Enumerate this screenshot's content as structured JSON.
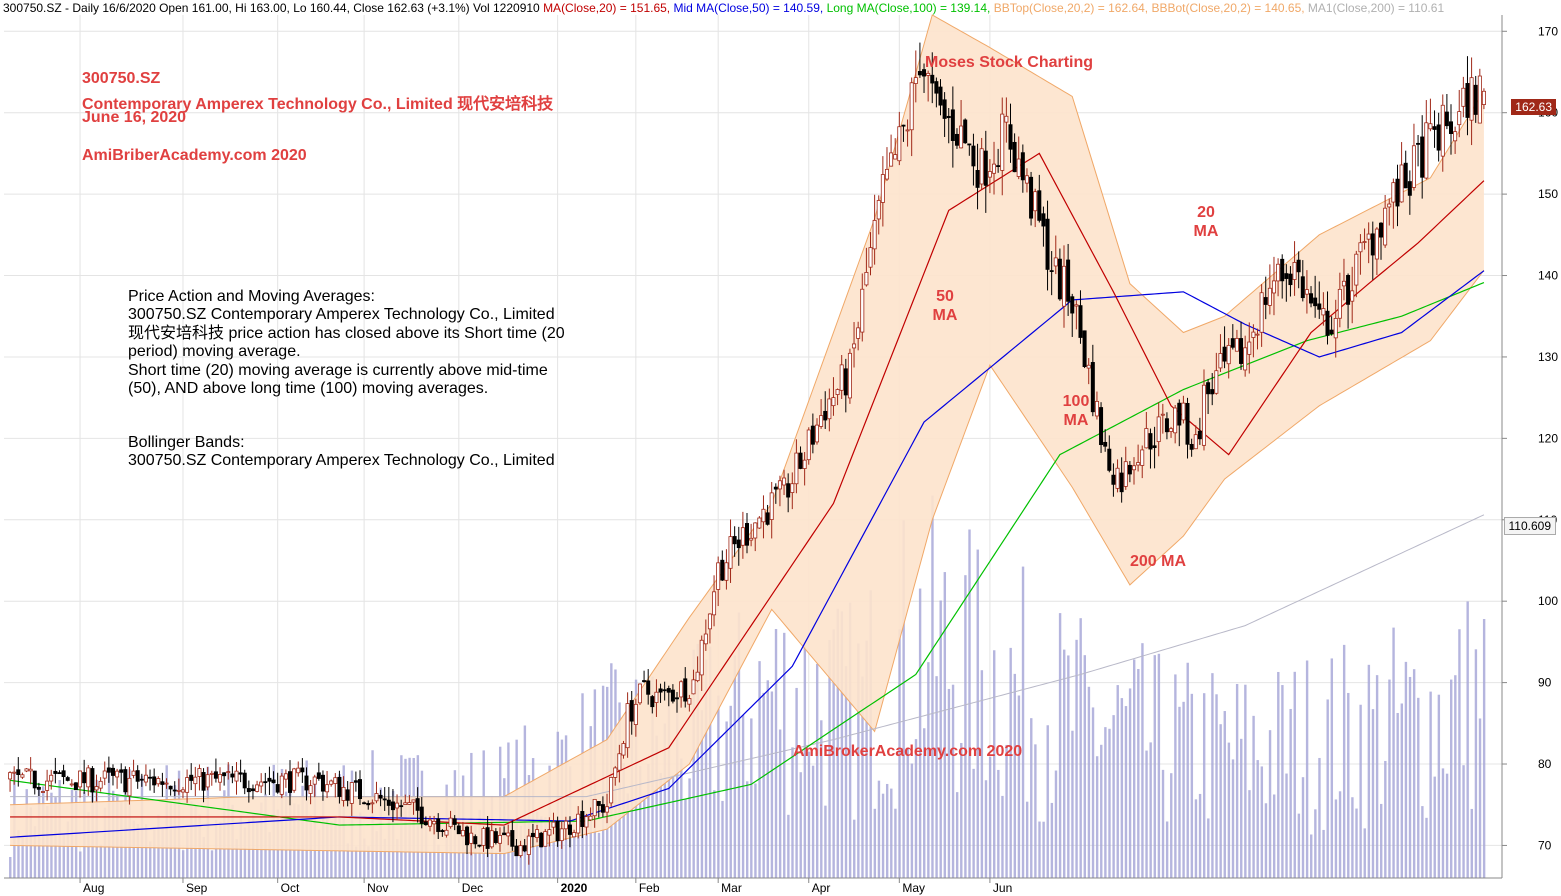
{
  "header": {
    "ticker_info": "300750.SZ - Daily 16/6/2020 Open 161.00, Hi 163.00, Lo 160.44, Close 162.63 (+3.1%) Vol 1220910",
    "ma20": "MA(Close,20) = 151.65,",
    "mid_ma": "Mid MA(Close,50) = 140.59,",
    "long_ma": "Long MA(Close,100) = 139.14,",
    "bbtop": "BBTop(Close,20,2) = 162.64,",
    "bbbot": "BBBot(Close,20,2) = 140.65,",
    "ma1": "MA1(Close,200) = 110.61"
  },
  "title_block": {
    "symbol": "300750.SZ",
    "company": "Contemporary Amperex Technology Co., Limited 现代安培科技",
    "date": "June 16, 2020",
    "site": "AmiBriberAcademy.com  2020"
  },
  "watermark_top": "Moses Stock Charting",
  "watermark_bottom": "AmiBrokerAcademy.com  2020",
  "notes": {
    "line1": "Price Action and Moving Averages:",
    "line2": "300750.SZ Contemporary Amperex Technology Co., Limited",
    "line3": "现代安培科技 price action has closed above its Short time (20",
    "line4": "period) moving average.",
    "line5": "Short time (20) moving average is currently above mid-time",
    "line6": "(50), AND above long time (100) moving averages.",
    "line7": "Bollinger Bands:",
    "line8": "300750.SZ Contemporary Amperex Technology Co., Limited"
  },
  "labels": {
    "ma50_a": "50",
    "ma50_b": "MA",
    "ma100_a": "100",
    "ma100_b": "MA",
    "ma20_a": "20",
    "ma20_b": "MA",
    "ma200": "200 MA"
  },
  "price_tags": {
    "close": "162.63",
    "ma200": "110.609"
  },
  "colors": {
    "ma20": "#c00000",
    "ma50": "#0000e0",
    "ma100": "#00c000",
    "bb": "#f0a868",
    "bb_fill": "#fde3cc",
    "ma200": "#b8b8c8",
    "volume": "#a8a8d8",
    "up": "#ffffff",
    "down": "#000000",
    "label": "#e04040"
  },
  "chart_data": {
    "type": "candlestick",
    "y_ticks": [
      70,
      80,
      90,
      100,
      110,
      120,
      130,
      140,
      150,
      160,
      170
    ],
    "ylim": [
      66,
      172
    ],
    "x_tick_labels": [
      "Aug",
      "Sep",
      "Oct",
      "Nov",
      "Dec",
      "2020",
      "Feb",
      "Mar",
      "Apr",
      "May",
      "Jun"
    ],
    "anchors": [
      [
        74,
        78
      ],
      [
        88,
        76
      ],
      [
        100,
        74
      ],
      [
        112,
        71
      ],
      [
        124,
        70
      ],
      [
        134,
        72
      ],
      [
        140,
        74
      ],
      [
        145,
        75
      ],
      [
        150,
        86
      ],
      [
        154,
        89
      ],
      [
        158,
        88
      ],
      [
        166,
        90
      ],
      [
        172,
        104
      ],
      [
        178,
        108
      ],
      [
        183,
        111
      ],
      [
        188,
        113
      ],
      [
        193,
        118
      ],
      [
        198,
        124
      ],
      [
        204,
        128
      ],
      [
        208,
        140
      ],
      [
        212,
        150
      ],
      [
        218,
        159
      ],
      [
        221,
        167
      ],
      [
        225,
        160
      ],
      [
        230,
        158
      ],
      [
        236,
        153
      ],
      [
        242,
        158
      ],
      [
        246,
        152
      ],
      [
        250,
        146
      ],
      [
        254,
        140
      ],
      [
        258,
        137
      ],
      [
        262,
        128
      ],
      [
        266,
        118
      ],
      [
        270,
        115
      ],
      [
        274,
        119
      ],
      [
        279,
        121
      ],
      [
        284,
        123
      ],
      [
        288,
        119
      ],
      [
        290,
        125
      ],
      [
        294,
        128
      ],
      [
        300,
        131
      ],
      [
        306,
        139
      ],
      [
        312,
        141
      ],
      [
        318,
        134
      ],
      [
        322,
        135
      ],
      [
        328,
        142
      ],
      [
        334,
        148
      ],
      [
        340,
        152
      ],
      [
        344,
        156
      ],
      [
        348,
        158
      ],
      [
        352,
        159
      ],
      [
        354,
        162
      ],
      [
        358,
        162.6
      ]
    ],
    "ma20": [
      [
        0,
        73.5
      ],
      [
        80,
        73.5
      ],
      [
        120,
        72.5
      ],
      [
        160,
        82
      ],
      [
        200,
        112
      ],
      [
        228,
        148
      ],
      [
        250,
        155
      ],
      [
        268,
        138
      ],
      [
        282,
        124
      ],
      [
        296,
        118
      ],
      [
        316,
        133
      ],
      [
        330,
        139
      ],
      [
        342,
        144
      ],
      [
        358,
        151.65
      ]
    ],
    "ma50": [
      [
        0,
        71
      ],
      [
        80,
        73.5
      ],
      [
        136,
        73
      ],
      [
        160,
        77
      ],
      [
        190,
        92
      ],
      [
        222,
        122
      ],
      [
        258,
        137
      ],
      [
        285,
        138
      ],
      [
        300,
        134
      ],
      [
        318,
        130
      ],
      [
        338,
        133
      ],
      [
        358,
        140.59
      ]
    ],
    "ma100": [
      [
        0,
        78
      ],
      [
        80,
        72.5
      ],
      [
        140,
        73
      ],
      [
        180,
        77.5
      ],
      [
        220,
        91
      ],
      [
        255,
        118
      ],
      [
        285,
        126
      ],
      [
        315,
        132
      ],
      [
        338,
        135
      ],
      [
        358,
        139.14
      ]
    ],
    "ma200": [
      [
        0,
        76
      ],
      [
        140,
        76
      ],
      [
        200,
        83
      ],
      [
        260,
        91
      ],
      [
        300,
        97
      ],
      [
        358,
        110.61
      ]
    ],
    "bb_top": [
      [
        0,
        75
      ],
      [
        60,
        76
      ],
      [
        120,
        76
      ],
      [
        145,
        83
      ],
      [
        165,
        98
      ],
      [
        185,
        112
      ],
      [
        210,
        147
      ],
      [
        224,
        172
      ],
      [
        238,
        168
      ],
      [
        258,
        162
      ],
      [
        272,
        139
      ],
      [
        285,
        133
      ],
      [
        295,
        135
      ],
      [
        318,
        145
      ],
      [
        345,
        152
      ],
      [
        358,
        162.64
      ]
    ],
    "bb_bottom": [
      [
        0,
        70
      ],
      [
        60,
        69.5
      ],
      [
        120,
        69
      ],
      [
        145,
        72
      ],
      [
        165,
        80
      ],
      [
        185,
        99
      ],
      [
        210,
        84
      ],
      [
        224,
        110
      ],
      [
        238,
        129
      ],
      [
        258,
        114
      ],
      [
        272,
        102
      ],
      [
        285,
        108
      ],
      [
        295,
        115
      ],
      [
        318,
        124
      ],
      [
        345,
        132
      ],
      [
        358,
        140.65
      ]
    ],
    "volume_levels": [
      [
        0,
        20
      ],
      [
        80,
        22
      ],
      [
        120,
        25
      ],
      [
        145,
        38
      ],
      [
        165,
        40
      ],
      [
        185,
        55
      ],
      [
        205,
        50
      ],
      [
        220,
        70
      ],
      [
        238,
        60
      ],
      [
        258,
        48
      ],
      [
        280,
        40
      ],
      [
        300,
        38
      ],
      [
        320,
        42
      ],
      [
        345,
        48
      ],
      [
        358,
        55
      ]
    ],
    "last_bar": {
      "open": 161.0,
      "high": 163.0,
      "low": 160.44,
      "close": 162.63,
      "volume": 1220910
    }
  }
}
